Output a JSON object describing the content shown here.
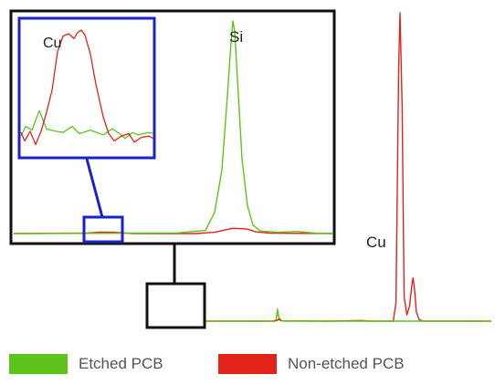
{
  "chart_data": {
    "type": "line",
    "title": "",
    "xlabel": "",
    "ylabel": "",
    "grid": false,
    "legend_position": "bottom",
    "series": [
      {
        "name": "Etched PCB",
        "color": "#5ec41b",
        "x": [
          0,
          40,
          80,
          120,
          150,
          170,
          190,
          210,
          240,
          300,
          380,
          400,
          420,
          440,
          460,
          500
        ],
        "y": [
          0,
          0,
          0,
          0,
          0,
          0,
          0,
          0,
          0,
          0,
          0,
          0,
          0,
          0,
          0,
          0
        ]
      },
      {
        "name": "Non-etched PCB",
        "color": "#e2231a",
        "x": [
          0,
          40,
          80,
          120,
          150,
          170,
          190,
          210,
          240,
          300,
          380,
          400,
          420,
          440,
          460,
          500
        ],
        "y": [
          0,
          0,
          0,
          0,
          0,
          0,
          0,
          0,
          0,
          0,
          0,
          0,
          0,
          0,
          0,
          0
        ]
      }
    ],
    "main_spectrum": {
      "etched": [
        [
          0,
          0
        ],
        [
          180,
          0
        ],
        [
          184,
          0.3
        ],
        [
          186,
          3.9
        ],
        [
          188,
          1.2
        ],
        [
          192,
          0.1
        ],
        [
          200,
          0
        ],
        [
          500,
          0
        ]
      ],
      "non_etched": [
        [
          0,
          0
        ],
        [
          180,
          0
        ],
        [
          185,
          0.2
        ],
        [
          188,
          0.6
        ],
        [
          192,
          0.1
        ],
        [
          260,
          0
        ],
        [
          300,
          0.15
        ],
        [
          310,
          0.2
        ],
        [
          320,
          0
        ],
        [
          356,
          0
        ],
        [
          360,
          6
        ],
        [
          364,
          82
        ],
        [
          366,
          100
        ],
        [
          369,
          70
        ],
        [
          372,
          8
        ],
        [
          376,
          2
        ],
        [
          380,
          5
        ],
        [
          383,
          11
        ],
        [
          385,
          14
        ],
        [
          387,
          11
        ],
        [
          390,
          3
        ],
        [
          394,
          0.5
        ],
        [
          400,
          0
        ],
        [
          500,
          0
        ]
      ]
    },
    "zoom_si": {
      "etched": [
        [
          0,
          0
        ],
        [
          80,
          0.01
        ],
        [
          140,
          0.02
        ],
        [
          180,
          0.03
        ],
        [
          210,
          0.15
        ],
        [
          220,
          1.0
        ],
        [
          228,
          3.0
        ],
        [
          234,
          6.5
        ],
        [
          238,
          9.0
        ],
        [
          240,
          10.0
        ],
        [
          242,
          9.5
        ],
        [
          246,
          6.5
        ],
        [
          250,
          3.5
        ],
        [
          256,
          1.3
        ],
        [
          262,
          0.4
        ],
        [
          270,
          0.12
        ],
        [
          290,
          0.06
        ],
        [
          310,
          0.1
        ],
        [
          330,
          0.02
        ],
        [
          350,
          0
        ]
      ],
      "non_etched": [
        [
          0,
          0
        ],
        [
          80,
          0.02
        ],
        [
          95,
          0.07
        ],
        [
          110,
          0.06
        ],
        [
          130,
          0
        ],
        [
          200,
          0
        ],
        [
          220,
          0.06
        ],
        [
          240,
          0.25
        ],
        [
          255,
          0.22
        ],
        [
          265,
          0.08
        ],
        [
          280,
          0.02
        ],
        [
          350,
          0
        ]
      ]
    },
    "zoom_cu": {
      "etched": [
        [
          0,
          0.12
        ],
        [
          5,
          0.2
        ],
        [
          12,
          0.17
        ],
        [
          20,
          0.33
        ],
        [
          28,
          0.18
        ],
        [
          38,
          0.16
        ],
        [
          46,
          0.15
        ],
        [
          56,
          0.2
        ],
        [
          64,
          0.14
        ],
        [
          76,
          0.17
        ],
        [
          90,
          0.13
        ],
        [
          100,
          0.18
        ],
        [
          108,
          0.14
        ],
        [
          114,
          0.1
        ],
        [
          122,
          0.15
        ],
        [
          128,
          0.13
        ],
        [
          140,
          0.15
        ],
        [
          145,
          0.14
        ]
      ],
      "non_etched": [
        [
          0,
          0.15
        ],
        [
          4,
          0.08
        ],
        [
          10,
          0.16
        ],
        [
          16,
          0.05
        ],
        [
          22,
          0.16
        ],
        [
          28,
          0.32
        ],
        [
          34,
          0.5
        ],
        [
          40,
          0.82
        ],
        [
          46,
          0.95
        ],
        [
          52,
          0.97
        ],
        [
          58,
          0.93
        ],
        [
          62,
          0.98
        ],
        [
          66,
          1.0
        ],
        [
          70,
          0.96
        ],
        [
          76,
          0.8
        ],
        [
          82,
          0.55
        ],
        [
          90,
          0.28
        ],
        [
          96,
          0.14
        ],
        [
          102,
          0.08
        ],
        [
          110,
          0.12
        ],
        [
          118,
          0.14
        ],
        [
          124,
          0.07
        ],
        [
          132,
          0.11
        ],
        [
          140,
          0.12
        ],
        [
          145,
          0.1
        ]
      ]
    },
    "annotations": [
      {
        "key": "cu_zoom",
        "text": "Cu"
      },
      {
        "key": "si",
        "text": "Si"
      },
      {
        "key": "cu_main",
        "text": "Cu"
      }
    ]
  },
  "legend": {
    "items": [
      {
        "label": "Etched PCB",
        "color": "#5ec41b"
      },
      {
        "label": "Non-etched PCB",
        "color": "#e2231a"
      }
    ]
  },
  "colors": {
    "frame": "#111111",
    "zoom_frame": "#1a22c9"
  }
}
